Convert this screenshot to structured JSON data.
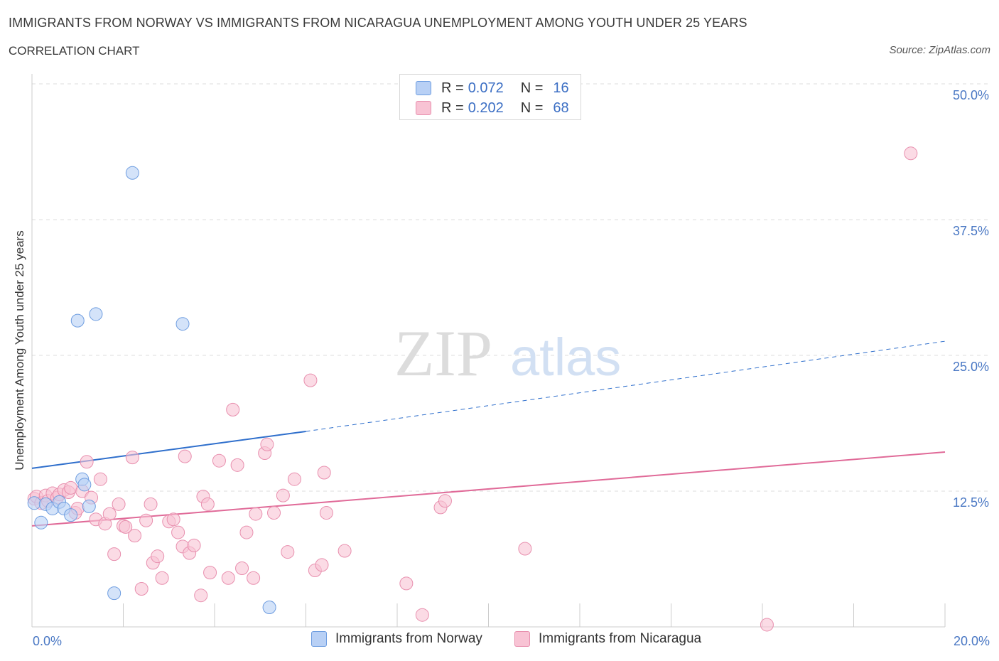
{
  "header": {
    "title": "IMMIGRANTS FROM NORWAY VS IMMIGRANTS FROM NICARAGUA UNEMPLOYMENT AMONG YOUTH UNDER 25 YEARS",
    "subtitle": "CORRELATION CHART",
    "source": "Source: ZipAtlas.com"
  },
  "watermark": {
    "zip": "ZIP",
    "atlas": "atlas"
  },
  "legend": {
    "norway": {
      "r_label": "R = ",
      "r_value": "0.072",
      "n_label": "N = ",
      "n_value": "16"
    },
    "nicaragua": {
      "r_label": "R = ",
      "r_value": "0.202",
      "n_label": "N = ",
      "n_value": "68"
    }
  },
  "colors": {
    "norway_fill": "#b8d0f5",
    "norway_stroke": "#6e9de0",
    "norway_line": "#2f6fcc",
    "nicaragua_fill": "#f8c3d4",
    "nicaragua_stroke": "#e88fae",
    "nicaragua_line": "#e06a98",
    "grid": "#dddddd",
    "tick": "#4a78c4"
  },
  "chart_data": {
    "type": "scatter",
    "title": "IMMIGRANTS FROM NORWAY VS IMMIGRANTS FROM NICARAGUA UNEMPLOYMENT AMONG YOUTH UNDER 25 YEARS",
    "xlabel": "",
    "ylabel": "Unemployment Among Youth under 25 years",
    "xlim": [
      0,
      20
    ],
    "ylim": [
      0,
      50
    ],
    "x_tick_labels": [
      "0.0%",
      "20.0%"
    ],
    "y_ticks": [
      12.5,
      25,
      37.5,
      50
    ],
    "y_tick_labels": [
      "12.5%",
      "25.0%",
      "37.5%",
      "50.0%"
    ],
    "grid": true,
    "legend_position": "top-center",
    "series": [
      {
        "name": "Immigrants from Norway",
        "R": 0.072,
        "N": 16,
        "points": [
          [
            0.05,
            11.4
          ],
          [
            0.2,
            9.6
          ],
          [
            0.3,
            11.3
          ],
          [
            0.45,
            10.9
          ],
          [
            0.6,
            11.5
          ],
          [
            0.7,
            10.9
          ],
          [
            0.85,
            10.3
          ],
          [
            1.0,
            28.2
          ],
          [
            1.1,
            13.6
          ],
          [
            1.15,
            13.1
          ],
          [
            1.25,
            11.1
          ],
          [
            1.4,
            28.8
          ],
          [
            1.8,
            3.1
          ],
          [
            2.2,
            41.8
          ],
          [
            3.3,
            27.9
          ],
          [
            5.2,
            1.8
          ]
        ],
        "trend": {
          "x0": 0,
          "y0": 14.6,
          "x1": 6.0,
          "y1": 18.0,
          "extended_x1": 20.0,
          "extended_y1": 26.3
        }
      },
      {
        "name": "Immigrants from Nicaragua",
        "R": 0.202,
        "N": 68,
        "points": [
          [
            0.05,
            11.8
          ],
          [
            0.1,
            12.0
          ],
          [
            0.2,
            11.4
          ],
          [
            0.3,
            12.1
          ],
          [
            0.35,
            11.6
          ],
          [
            0.45,
            12.3
          ],
          [
            0.55,
            11.9
          ],
          [
            0.6,
            12.2
          ],
          [
            0.7,
            12.6
          ],
          [
            0.8,
            12.4
          ],
          [
            0.85,
            12.8
          ],
          [
            0.95,
            10.5
          ],
          [
            1.0,
            10.9
          ],
          [
            1.1,
            12.5
          ],
          [
            1.2,
            15.2
          ],
          [
            1.3,
            11.9
          ],
          [
            1.4,
            9.9
          ],
          [
            1.5,
            13.6
          ],
          [
            1.6,
            9.5
          ],
          [
            1.7,
            10.4
          ],
          [
            1.8,
            6.7
          ],
          [
            1.9,
            11.3
          ],
          [
            2.0,
            9.3
          ],
          [
            2.05,
            9.2
          ],
          [
            2.2,
            15.6
          ],
          [
            2.25,
            8.4
          ],
          [
            2.4,
            3.5
          ],
          [
            2.5,
            9.8
          ],
          [
            2.6,
            11.3
          ],
          [
            2.65,
            5.9
          ],
          [
            2.75,
            6.5
          ],
          [
            2.85,
            4.5
          ],
          [
            3.0,
            9.7
          ],
          [
            3.1,
            9.9
          ],
          [
            3.2,
            8.7
          ],
          [
            3.3,
            7.4
          ],
          [
            3.35,
            15.7
          ],
          [
            3.45,
            6.8
          ],
          [
            3.55,
            7.5
          ],
          [
            3.7,
            2.9
          ],
          [
            3.75,
            12.0
          ],
          [
            3.85,
            11.3
          ],
          [
            3.9,
            5.0
          ],
          [
            4.1,
            15.3
          ],
          [
            4.3,
            4.5
          ],
          [
            4.4,
            20.0
          ],
          [
            4.5,
            14.9
          ],
          [
            4.6,
            5.4
          ],
          [
            4.7,
            8.7
          ],
          [
            4.85,
            4.5
          ],
          [
            4.9,
            10.4
          ],
          [
            5.1,
            16.0
          ],
          [
            5.15,
            16.8
          ],
          [
            5.3,
            10.5
          ],
          [
            5.5,
            12.1
          ],
          [
            5.6,
            6.9
          ],
          [
            5.75,
            13.6
          ],
          [
            6.1,
            22.7
          ],
          [
            6.2,
            5.2
          ],
          [
            6.35,
            5.7
          ],
          [
            6.4,
            14.2
          ],
          [
            6.45,
            10.5
          ],
          [
            6.85,
            7.0
          ],
          [
            8.2,
            4.0
          ],
          [
            8.55,
            1.1
          ],
          [
            8.95,
            11.0
          ],
          [
            9.05,
            11.6
          ],
          [
            10.8,
            7.2
          ],
          [
            16.1,
            0.2
          ],
          [
            19.25,
            43.6
          ]
        ],
        "trend": {
          "x0": 0,
          "y0": 9.3,
          "x1": 20.0,
          "y1": 16.1
        }
      }
    ]
  }
}
